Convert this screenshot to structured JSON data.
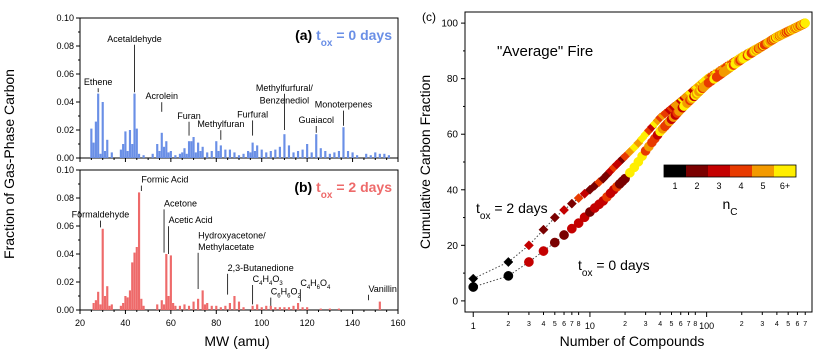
{
  "left_panel": {
    "ylabel": "Fraction of Gas-Phase Carbon",
    "xlabel": "MW (amu)",
    "xlim": [
      20,
      160
    ],
    "x_ticks": [
      "20",
      "40",
      "60",
      "80",
      "100",
      "120",
      "140",
      "160"
    ],
    "y_ticks": [
      "0.00",
      "0.02",
      "0.04",
      "0.06",
      "0.08",
      "0.10"
    ]
  },
  "right_panel": {
    "panel_label": "(c)",
    "title": "\"Average\" Fire",
    "ylabel": "Cumulative Carbon Fraction",
    "xlabel": "Number of Compounds",
    "y_ticks": [
      "0",
      "20",
      "40",
      "60",
      "80",
      "100"
    ],
    "x_ticks": [
      {
        "v": 1,
        "l": "1"
      },
      {
        "v": 2,
        "l": "2"
      },
      {
        "v": 3,
        "l": "3"
      },
      {
        "v": 4,
        "l": "4"
      },
      {
        "v": 5,
        "l": "5"
      },
      {
        "v": 6,
        "l": "6"
      },
      {
        "v": 7,
        "l": "7"
      },
      {
        "v": 8,
        "l": "8"
      },
      {
        "v": 10,
        "l": "10"
      },
      {
        "v": 20,
        "l": "2"
      },
      {
        "v": 30,
        "l": "3"
      },
      {
        "v": 40,
        "l": "4"
      },
      {
        "v": 50,
        "l": "5"
      },
      {
        "v": 60,
        "l": "6"
      },
      {
        "v": 70,
        "l": "7"
      },
      {
        "v": 80,
        "l": "8"
      },
      {
        "v": 100,
        "l": "100"
      },
      {
        "v": 200,
        "l": "2"
      },
      {
        "v": 300,
        "l": "3"
      },
      {
        "v": 400,
        "l": "4"
      },
      {
        "v": 500,
        "l": "5"
      },
      {
        "v": 600,
        "l": "6"
      },
      {
        "v": 700,
        "l": "7"
      }
    ],
    "legend_title": "n",
    "legend_title_sub": "C",
    "legend_labels": [
      "1",
      "2",
      "3",
      "4",
      "5",
      "6+"
    ],
    "legend_colors": [
      "#000000",
      "#7a0000",
      "#c40000",
      "#e83a00",
      "#f39a00",
      "#ffee00"
    ],
    "curve_labels": [
      {
        "main": "t",
        "sub": "ox",
        "rest": " = 2 days"
      },
      {
        "main": "t",
        "sub": "ox",
        "rest": " = 0 days"
      }
    ]
  },
  "chart_data": [
    {
      "type": "bar",
      "panel": "(a)",
      "title_parts": [
        "(a) ",
        "t",
        "ox",
        " = 0 days"
      ],
      "color": "#6a8fe6",
      "xlabel": "MW (amu)",
      "ylabel": "Fraction of Gas-Phase Carbon",
      "xlim": [
        20,
        160
      ],
      "ylim": [
        0,
        0.1
      ],
      "points": [
        [
          25,
          0.021
        ],
        [
          26,
          0.011
        ],
        [
          27,
          0.026
        ],
        [
          28,
          0.046
        ],
        [
          29,
          0.003
        ],
        [
          30,
          0.04
        ],
        [
          31,
          0.005
        ],
        [
          32,
          0.013
        ],
        [
          34,
          0.004
        ],
        [
          38,
          0.006
        ],
        [
          39,
          0.01
        ],
        [
          40,
          0.019
        ],
        [
          41,
          0.005
        ],
        [
          42,
          0.02
        ],
        [
          43,
          0.01
        ],
        [
          44,
          0.046
        ],
        [
          45,
          0.021
        ],
        [
          46,
          0.003
        ],
        [
          48,
          0.002
        ],
        [
          52,
          0.003
        ],
        [
          54,
          0.01
        ],
        [
          55,
          0.005
        ],
        [
          56,
          0.018
        ],
        [
          57,
          0.008
        ],
        [
          58,
          0.012
        ],
        [
          59,
          0.004
        ],
        [
          60,
          0.005
        ],
        [
          62,
          0.002
        ],
        [
          64,
          0.003
        ],
        [
          65,
          0.004
        ],
        [
          66,
          0.007
        ],
        [
          67,
          0.003
        ],
        [
          68,
          0.012
        ],
        [
          69,
          0.012
        ],
        [
          70,
          0.015
        ],
        [
          71,
          0.004
        ],
        [
          72,
          0.011
        ],
        [
          73,
          0.005
        ],
        [
          74,
          0.008
        ],
        [
          76,
          0.004
        ],
        [
          78,
          0.005
        ],
        [
          80,
          0.012
        ],
        [
          81,
          0.005
        ],
        [
          82,
          0.009
        ],
        [
          84,
          0.006
        ],
        [
          86,
          0.006
        ],
        [
          88,
          0.004
        ],
        [
          90,
          0.002
        ],
        [
          92,
          0.003
        ],
        [
          94,
          0.005
        ],
        [
          95,
          0.004
        ],
        [
          96,
          0.011
        ],
        [
          97,
          0.005
        ],
        [
          98,
          0.009
        ],
        [
          100,
          0.006
        ],
        [
          102,
          0.004
        ],
        [
          104,
          0.005
        ],
        [
          106,
          0.006
        ],
        [
          108,
          0.008
        ],
        [
          110,
          0.017
        ],
        [
          112,
          0.009
        ],
        [
          114,
          0.004
        ],
        [
          116,
          0.005
        ],
        [
          118,
          0.006
        ],
        [
          120,
          0.01
        ],
        [
          122,
          0.004
        ],
        [
          124,
          0.017
        ],
        [
          126,
          0.007
        ],
        [
          128,
          0.005
        ],
        [
          130,
          0.003
        ],
        [
          132,
          0.004
        ],
        [
          134,
          0.005
        ],
        [
          136,
          0.022
        ],
        [
          138,
          0.005
        ],
        [
          140,
          0.004
        ],
        [
          142,
          0.002
        ],
        [
          146,
          0.003
        ],
        [
          148,
          0.002
        ],
        [
          150,
          0.004
        ],
        [
          152,
          0.003
        ],
        [
          154,
          0.003
        ],
        [
          156,
          0.002
        ]
      ],
      "labels": [
        {
          "t": "Ethene",
          "x": 28
        },
        {
          "t": "Acetaldehyde",
          "x": 44
        },
        {
          "t": "Acrolein",
          "x": 56
        },
        {
          "t": "Furan",
          "x": 68
        },
        {
          "t": "Methylfuran",
          "x": 82
        },
        {
          "t": "Furfural",
          "x": 96
        },
        {
          "t": "Methylfurfural/",
          "x": 110
        },
        {
          "t": "Benzenediol",
          "x": 110
        },
        {
          "t": "Guaiacol",
          "x": 124
        },
        {
          "t": "Monoterpenes",
          "x": 136
        }
      ]
    },
    {
      "type": "bar",
      "panel": "(b)",
      "title_parts": [
        "(b) ",
        "t",
        "ox",
        " = 2 days"
      ],
      "color": "#ee6a6a",
      "xlabel": "MW (amu)",
      "ylabel": "Fraction of Gas-Phase Carbon",
      "xlim": [
        20,
        160
      ],
      "ylim": [
        0,
        0.1
      ],
      "points": [
        [
          26,
          0.005
        ],
        [
          27,
          0.007
        ],
        [
          28,
          0.013
        ],
        [
          29,
          0.004
        ],
        [
          30,
          0.058
        ],
        [
          31,
          0.01
        ],
        [
          32,
          0.017
        ],
        [
          33,
          0.003
        ],
        [
          34,
          0.004
        ],
        [
          38,
          0.003
        ],
        [
          39,
          0.005
        ],
        [
          40,
          0.01
        ],
        [
          41,
          0.009
        ],
        [
          42,
          0.014
        ],
        [
          43,
          0.034
        ],
        [
          44,
          0.041
        ],
        [
          45,
          0.045
        ],
        [
          46,
          0.084
        ],
        [
          47,
          0.008
        ],
        [
          48,
          0.003
        ],
        [
          54,
          0.004
        ],
        [
          56,
          0.007
        ],
        [
          57,
          0.004
        ],
        [
          58,
          0.04
        ],
        [
          59,
          0.01
        ],
        [
          60,
          0.039
        ],
        [
          61,
          0.005
        ],
        [
          62,
          0.003
        ],
        [
          64,
          0.003
        ],
        [
          66,
          0.004
        ],
        [
          68,
          0.003
        ],
        [
          70,
          0.006
        ],
        [
          72,
          0.008
        ],
        [
          74,
          0.014
        ],
        [
          75,
          0.004
        ],
        [
          76,
          0.005
        ],
        [
          78,
          0.003
        ],
        [
          80,
          0.003
        ],
        [
          82,
          0.002
        ],
        [
          84,
          0.003
        ],
        [
          86,
          0.005
        ],
        [
          88,
          0.01
        ],
        [
          90,
          0.006
        ],
        [
          92,
          0.002
        ],
        [
          96,
          0.003
        ],
        [
          98,
          0.004
        ],
        [
          100,
          0.002
        ],
        [
          102,
          0.003
        ],
        [
          104,
          0.003
        ],
        [
          106,
          0.002
        ],
        [
          108,
          0.002
        ],
        [
          110,
          0.002
        ],
        [
          112,
          0.002
        ],
        [
          114,
          0.003
        ],
        [
          116,
          0.005
        ],
        [
          118,
          0.002
        ],
        [
          120,
          0.002
        ],
        [
          126,
          0.001
        ],
        [
          130,
          0.001
        ],
        [
          134,
          0.001
        ],
        [
          152,
          0.006
        ]
      ],
      "labels": [
        {
          "t": "Formaldehyde",
          "x": 30
        },
        {
          "t": "Formic Acid",
          "x": 46
        },
        {
          "t": "Acetone",
          "x": 58
        },
        {
          "t": "Acetic Acid",
          "x": 60
        },
        {
          "t": "Hydroxyacetone/",
          "x": 74
        },
        {
          "t": "Methylacetate",
          "x": 74
        },
        {
          "t": "2,3-Butanedione",
          "x": 86
        },
        {
          "t": "C4H4O3",
          "x": 100
        },
        {
          "t": "C6H6O2",
          "x": 110
        },
        {
          "t": "C4H6O4",
          "x": 118
        },
        {
          "t": "Vanillin",
          "x": 152
        }
      ]
    },
    {
      "type": "scatter",
      "panel": "(c)",
      "title": "\"Average\" Fire",
      "xlabel": "Number of Compounds",
      "ylabel": "Cumulative Carbon Fraction",
      "xscale": "log",
      "xlim": [
        0.85,
        800
      ],
      "ylim": [
        -4,
        104
      ],
      "color_key": "nC",
      "series": [
        {
          "name": "tox = 2 days",
          "marker": "diamond",
          "anchors": [
            [
              1,
              8
            ],
            [
              2,
              14
            ],
            [
              3,
              20
            ],
            [
              5,
              30
            ],
            [
              8,
              37
            ],
            [
              10,
              40
            ],
            [
              13,
              44
            ],
            [
              16,
              48
            ],
            [
              20,
              52
            ],
            [
              25,
              56
            ],
            [
              30,
              60
            ],
            [
              40,
              66
            ],
            [
              60,
              72
            ],
            [
              100,
              80
            ],
            [
              200,
              88
            ],
            [
              400,
              95
            ],
            [
              700,
              100
            ]
          ]
        },
        {
          "name": "tox = 0 days",
          "marker": "circle",
          "anchors": [
            [
              1,
              5
            ],
            [
              2,
              9
            ],
            [
              3,
              14
            ],
            [
              5,
              21
            ],
            [
              8,
              28
            ],
            [
              10,
              32
            ],
            [
              13,
              36
            ],
            [
              16,
              40
            ],
            [
              20,
              44
            ],
            [
              25,
              49
            ],
            [
              30,
              54
            ],
            [
              40,
              61
            ],
            [
              60,
              69
            ],
            [
              100,
              78
            ],
            [
              200,
              87
            ],
            [
              400,
              95
            ],
            [
              700,
              100
            ]
          ]
        }
      ]
    }
  ]
}
